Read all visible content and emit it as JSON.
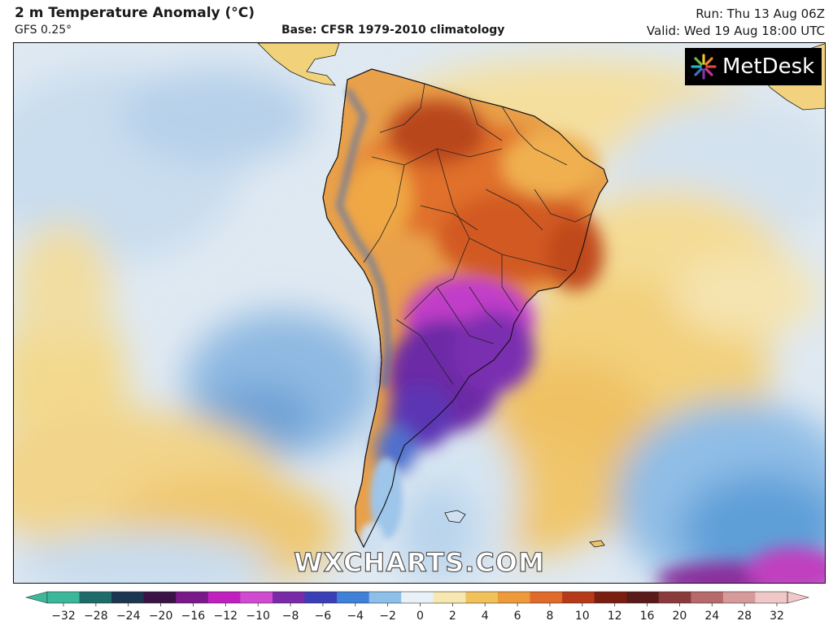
{
  "header": {
    "title": "2 m Temperature Anomaly (°C)",
    "model": "GFS 0.25°",
    "base": "Base: CFSR 1979-2010 climatology",
    "run": "Run: Thu 13 Aug 06Z",
    "valid": "Valid: Wed 19 Aug 18:00 UTC"
  },
  "map": {
    "logo_text": "MetDesk",
    "watermark": "WXCHARTS.COM"
  },
  "colorbar": {
    "ticks": [
      "−32",
      "−28",
      "−24",
      "−20",
      "−16",
      "−12",
      "−10",
      "−8",
      "−6",
      "−4",
      "−2",
      "0",
      "2",
      "4",
      "6",
      "8",
      "10",
      "12",
      "16",
      "20",
      "24",
      "28",
      "32"
    ],
    "colors": [
      "#3bb89a",
      "#1f6b6b",
      "#1c3550",
      "#3a1446",
      "#7a1a8a",
      "#c020c0",
      "#d14bd0",
      "#7a2aa8",
      "#3a3fb8",
      "#3f80d8",
      "#8dbfea",
      "#e8f1f8",
      "#f7e7b0",
      "#f2c25a",
      "#ef9a3a",
      "#e06a2a",
      "#b63a1a",
      "#7a1e10",
      "#5a1a1a",
      "#8a3a3a",
      "#b66a6a",
      "#d79a9a",
      "#f0c8c8"
    ]
  }
}
